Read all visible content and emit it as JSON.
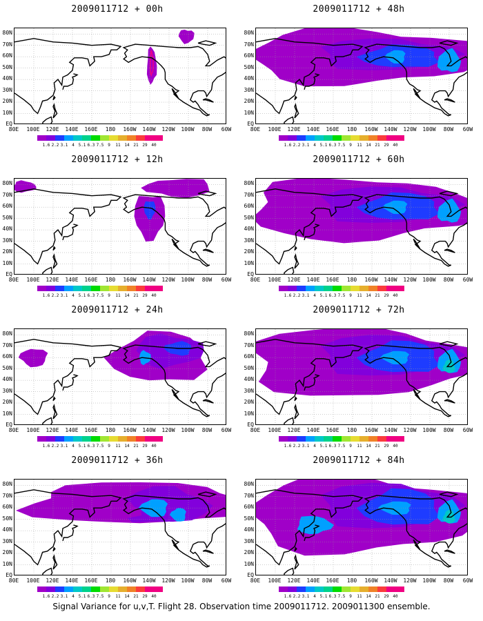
{
  "lat_labels": [
    "80N",
    "70N",
    "60N",
    "50N",
    "40N",
    "30N",
    "20N",
    "10N",
    "EQ"
  ],
  "lon_labels": [
    "80E",
    "100E",
    "120E",
    "140E",
    "160E",
    "180",
    "160W",
    "140W",
    "120W",
    "100W",
    "80W",
    "60W"
  ],
  "colorbar": {
    "labels": [
      "1.6",
      "2.2",
      "3.1",
      "4",
      "5.1",
      "6.3",
      "7.5",
      "9",
      "11",
      "14",
      "21",
      "29",
      "40"
    ],
    "colors": [
      "#a000c8",
      "#8200dc",
      "#1e3cff",
      "#00a0ff",
      "#00c8c8",
      "#00d28c",
      "#00dc00",
      "#a0e632",
      "#e6dc32",
      "#e6af2d",
      "#f08228",
      "#fa3c3c",
      "#f00082"
    ]
  },
  "panels": [
    {
      "title": "2009011712 + 00h",
      "level": 0
    },
    {
      "title": "2009011712 + 48h",
      "level": 4
    },
    {
      "title": "2009011712 + 12h",
      "level": 1
    },
    {
      "title": "2009011712 + 60h",
      "level": 5
    },
    {
      "title": "2009011712 + 24h",
      "level": 2
    },
    {
      "title": "2009011712 + 72h",
      "level": 6
    },
    {
      "title": "2009011712 + 36h",
      "level": 3
    },
    {
      "title": "2009011712 + 84h",
      "level": 7
    }
  ],
  "footer": "Signal Variance for u,v,T. Flight 28. Observation time 2009011712. 2009011300 ensemble."
}
